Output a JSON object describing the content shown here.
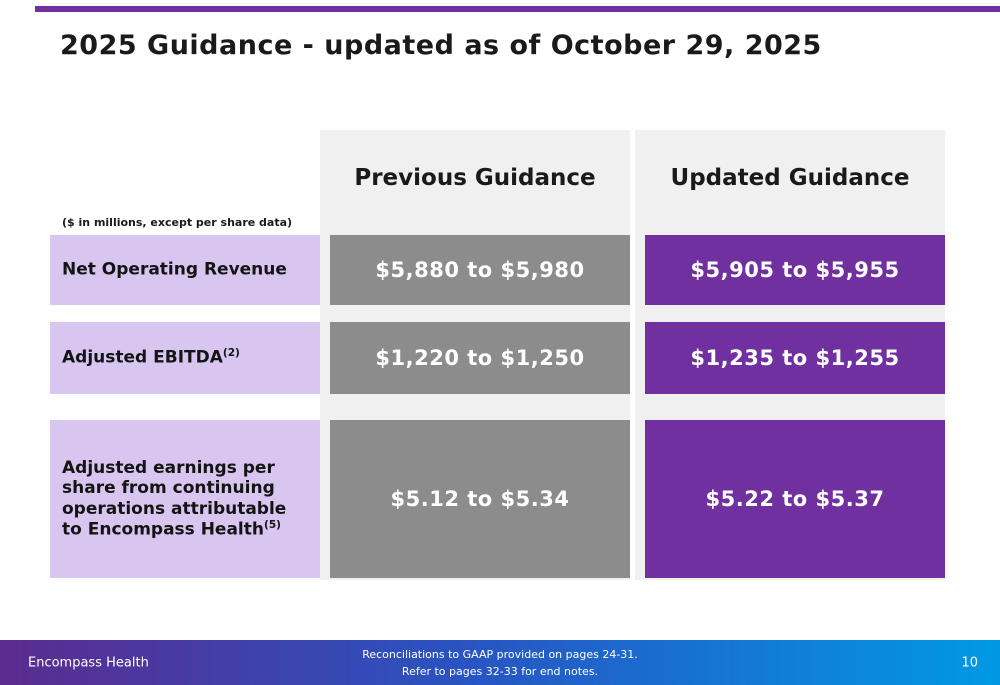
{
  "slide": {
    "title": "2025 Guidance - updated as of October 29, 2025",
    "units_note": "($ in millions, except per share data)",
    "columns": [
      "Previous Guidance",
      "Updated Guidance"
    ],
    "rows": [
      {
        "label": "Net Operating Revenue",
        "sup": "",
        "previous": "$5,880 to $5,980",
        "updated": "$5,905 to $5,955"
      },
      {
        "label": "Adjusted EBITDA",
        "sup": "(2)",
        "previous": "$1,220 to $1,250",
        "updated": "$1,235 to $1,255"
      },
      {
        "label": "Adjusted earnings per share from continuing operations attributable to Encompass Health",
        "sup": "(5)",
        "previous": "$5.12 to $5.34",
        "updated": "$5.22 to $5.37"
      }
    ],
    "footer": {
      "brand": "Encompass Health",
      "note_line1": "Reconciliations to GAAP provided on pages 24-31.",
      "note_line2": "Refer to pages 32-33 for end notes.",
      "page": "10"
    },
    "colors": {
      "accent_purple": "#7030a0",
      "cell_purple": "#7030a0",
      "cell_gray": "#8c8c8c",
      "label_lavender": "#d9c6f0",
      "column_band_gray": "#f0f0f0",
      "footer_gradient_left": "#5b2b8f",
      "footer_gradient_right": "#0099e6"
    }
  }
}
